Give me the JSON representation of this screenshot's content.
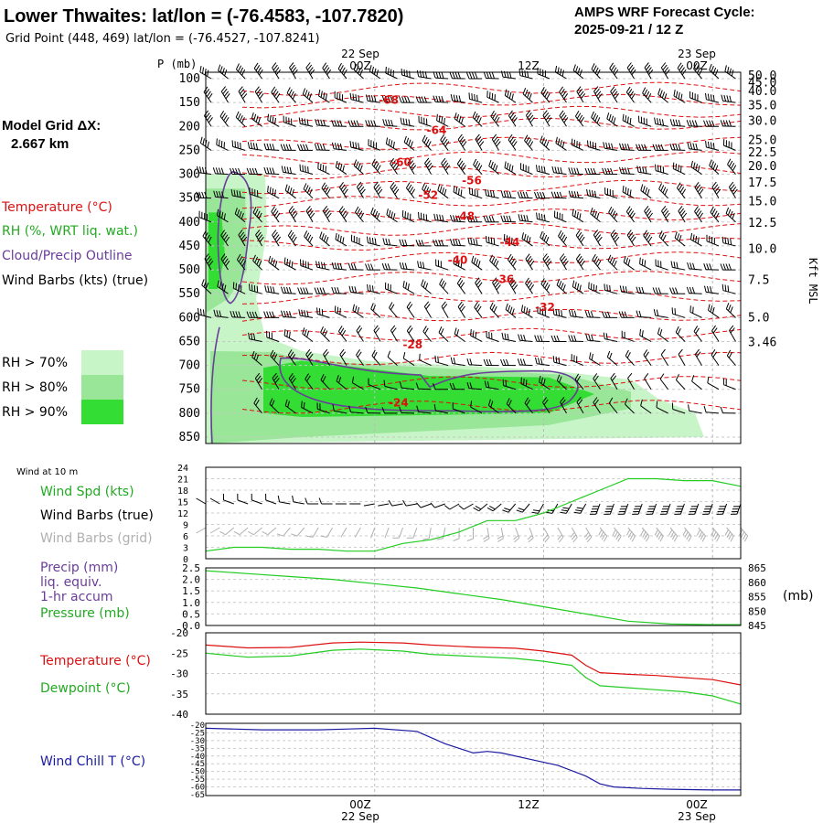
{
  "header": {
    "title": "Lower Thwaites:  lat/lon = (-76.4583, -107.7820)",
    "subtitle": "Grid Point (448, 469) lat/lon = (-76.4527, -107.8241)",
    "cycle_line1": "AMPS WRF Forecast Cycle:",
    "cycle_line2": "2025-09-21 / 12  Z"
  },
  "sidebar": {
    "model_grid_label": "Model Grid ΔX:",
    "model_grid_value": "2.667 km",
    "legend_temperature": "Temperature (°C)",
    "legend_rh": "RH (%, WRT liq. wat.)",
    "legend_cloud": "Cloud/Precip Outline",
    "legend_wind": "Wind Barbs (kts) (true)",
    "rh70": "RH > 70%",
    "rh80": "RH > 80%",
    "rh90": "RH > 90%"
  },
  "colors": {
    "temp": "#dd1111",
    "rh70": "#c8f5c8",
    "rh80": "#99e699",
    "rh90": "#33dd33",
    "cloud": "#6a3d9a",
    "wind": "#000000",
    "grid_barb": "#b0b0b0",
    "speed": "#22cc22",
    "chill": "#1a1aa0"
  },
  "time_axis": {
    "top_labels": [
      {
        "line1": "22 Sep",
        "line2": "00Z"
      },
      {
        "line1": "",
        "line2": "12Z"
      },
      {
        "line1": "23 Sep",
        "line2": "00Z"
      }
    ],
    "bottom_labels": [
      {
        "line1": "00Z",
        "line2": "22 Sep"
      },
      {
        "line1": "12Z",
        "line2": ""
      },
      {
        "line1": "00Z",
        "line2": "23 Sep"
      }
    ]
  },
  "chart_data": [
    {
      "type": "cross-section",
      "name": "upper-air",
      "ylabel": "P (mb)",
      "right_label": "Kft MSL",
      "pressure_ticks": [
        "100",
        "150",
        "200",
        "250",
        "300",
        "350",
        "400",
        "450",
        "500",
        "550",
        "600",
        "650",
        "700",
        "750",
        "800",
        "850"
      ],
      "height_ticks": [
        "50.0",
        "45.0",
        "40.0",
        "35.0",
        "30.0",
        "25.0",
        "22.5",
        "20.0",
        "17.5",
        "15.0",
        "12.5",
        "10.0",
        "7.5",
        "5.0",
        "3.46"
      ],
      "height_tick_pressures": [
        94,
        109,
        127,
        156,
        189,
        229,
        255,
        284,
        318,
        357,
        402,
        457,
        522,
        600,
        652
      ],
      "temperature_labels": [
        {
          "text": "-68",
          "hour": 1.0,
          "p": 153
        },
        {
          "text": "-64",
          "hour": 4.4,
          "p": 216
        },
        {
          "text": "-60",
          "hour": 1.9,
          "p": 283
        },
        {
          "text": "-56",
          "hour": 6.9,
          "p": 321
        },
        {
          "text": "-52",
          "hour": 3.8,
          "p": 352
        },
        {
          "text": "-48",
          "hour": 6.4,
          "p": 396
        },
        {
          "text": "-44",
          "hour": 9.6,
          "p": 450
        },
        {
          "text": "-40",
          "hour": 5.9,
          "p": 487
        },
        {
          "text": "-36",
          "hour": 9.2,
          "p": 528
        },
        {
          "text": "-32",
          "hour": 12.1,
          "p": 586
        },
        {
          "text": "-28",
          "hour": 2.7,
          "p": 664
        },
        {
          "text": "-24",
          "hour": 1.7,
          "p": 786
        }
      ]
    },
    {
      "type": "line",
      "name": "surface-wind",
      "title": "Wind at 10 m",
      "series_label": "Wind Spd (kts)",
      "barbs_true_label": "Wind Barbs (true)",
      "barbs_grid_label": "Wind Barbs (grid)",
      "ylim": [
        0,
        24
      ],
      "yticks": [
        "24",
        "21",
        "18",
        "15",
        "12",
        "9",
        "6",
        "3",
        "0"
      ],
      "x_hours": [
        -12,
        -10,
        -8,
        -6,
        -4,
        -2,
        0,
        2,
        4,
        6,
        8,
        10,
        12,
        14,
        16,
        18,
        20,
        22,
        24,
        26
      ],
      "wind_speed": [
        2,
        3,
        3,
        2.5,
        2.5,
        2,
        2,
        4,
        5,
        7,
        10,
        10,
        12,
        15,
        18,
        21,
        21,
        20.5,
        20.5,
        19
      ],
      "wind_dir": [
        300,
        290,
        290,
        280,
        270,
        270,
        260,
        260,
        250,
        240,
        230,
        220,
        210,
        210,
        200,
        200,
        200,
        200,
        200,
        200
      ]
    },
    {
      "type": "line",
      "name": "precip-pressure",
      "precip_label_1": "Precip (mm)",
      "precip_label_2": "liq. equiv.",
      "precip_label_3": "1-hr accum",
      "pressure_label": "Pressure (mb)",
      "right_unit": "(mb)",
      "precip_ticks": [
        "2.5",
        "2.0",
        "1.5",
        "1.0",
        "0.5",
        "0.0"
      ],
      "pressure_ticks": [
        "865",
        "860",
        "855",
        "850",
        "845"
      ],
      "pressure_range": [
        845,
        865
      ],
      "x_hours": [
        -12,
        -9,
        -6,
        -3,
        0,
        3,
        6,
        9,
        12,
        15,
        18,
        21,
        24,
        26
      ],
      "pressure": [
        864,
        863,
        862,
        861,
        859.5,
        858,
        856,
        854,
        851.5,
        849,
        846.5,
        845.5,
        845.3,
        845.3
      ]
    },
    {
      "type": "line",
      "name": "temperature-dewpoint",
      "temperature_label": "Temperature (°C)",
      "dewpoint_label": "Dewpoint (°C)",
      "yticks": [
        "-20",
        "-25",
        "-30",
        "-35",
        "-40"
      ],
      "ylim": [
        -40,
        -20
      ],
      "x_hours": [
        -12,
        -9,
        -6,
        -3,
        -1,
        2,
        4,
        7,
        10,
        12,
        14,
        15,
        16,
        18,
        20,
        22,
        24,
        26
      ],
      "temperature": [
        -23,
        -23.7,
        -23.6,
        -22.5,
        -22.3,
        -22.5,
        -23,
        -23.5,
        -23.8,
        -24.5,
        -25.5,
        -28,
        -29.8,
        -30.2,
        -30.5,
        -31,
        -31.5,
        -32.8
      ],
      "dewpoint": [
        -25,
        -26,
        -25.7,
        -24.3,
        -24,
        -24.5,
        -25.3,
        -25.8,
        -26.3,
        -27,
        -28,
        -31,
        -33,
        -33.5,
        -34,
        -34.5,
        -35.5,
        -37.5
      ]
    },
    {
      "type": "line",
      "name": "wind-chill",
      "series_label": "Wind Chill T (°C)",
      "yticks": [
        "-20",
        "-25",
        "-30",
        "-35",
        "-40",
        "-45",
        "-50",
        "-55",
        "-60",
        "-65"
      ],
      "ylim": [
        -65,
        -20
      ],
      "x_hours": [
        -12,
        -8,
        -4,
        0,
        3,
        5,
        7,
        8,
        9,
        11,
        13,
        15,
        16,
        17,
        19,
        21,
        24,
        26
      ],
      "wind_chill": [
        -22,
        -23,
        -23,
        -22,
        -24,
        -32,
        -38,
        -37,
        -38,
        -42,
        -46,
        -53,
        -58,
        -60,
        -61,
        -61.5,
        -62,
        -62
      ]
    }
  ]
}
